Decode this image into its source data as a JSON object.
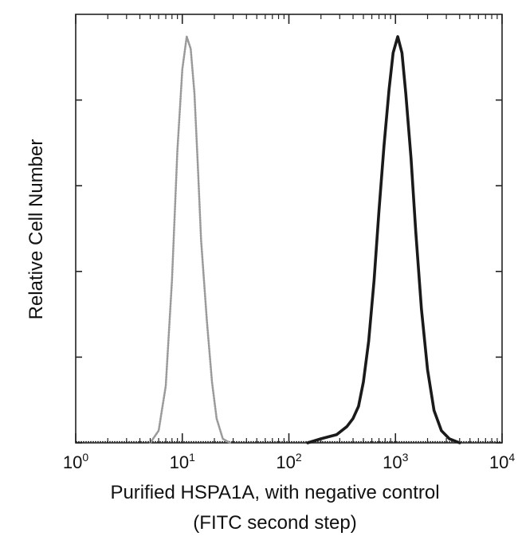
{
  "chart_data": {
    "type": "line",
    "title": "",
    "xlabel_line1": "Purified HSPA1A, with negative control",
    "xlabel_line2": "(FITC second step)",
    "ylabel": "Relative Cell Number",
    "x_scale": "log",
    "xlim": [
      1,
      10000
    ],
    "ylim": [
      0,
      100
    ],
    "grid": false,
    "legend": "none",
    "x_ticks": [
      {
        "base": "10",
        "exp": "0",
        "value": 1
      },
      {
        "base": "10",
        "exp": "1",
        "value": 10
      },
      {
        "base": "10",
        "exp": "2",
        "value": 100
      },
      {
        "base": "10",
        "exp": "3",
        "value": 1000
      },
      {
        "base": "10",
        "exp": "4",
        "value": 10000
      }
    ],
    "series": [
      {
        "color": "#9a9a9a",
        "style": "dotted",
        "points": [
          [
            5,
            0
          ],
          [
            6,
            3
          ],
          [
            7,
            14
          ],
          [
            8,
            40
          ],
          [
            9,
            72
          ],
          [
            10,
            92
          ],
          [
            11,
            100
          ],
          [
            12,
            97
          ],
          [
            13,
            86
          ],
          [
            14,
            68
          ],
          [
            15,
            50
          ],
          [
            17,
            30
          ],
          [
            19,
            15
          ],
          [
            21,
            6
          ],
          [
            24,
            1
          ],
          [
            28,
            0
          ]
        ]
      },
      {
        "color": "#1a1a1a",
        "style": "solid",
        "points": [
          [
            150,
            0
          ],
          [
            200,
            1
          ],
          [
            280,
            2
          ],
          [
            350,
            4
          ],
          [
            400,
            6
          ],
          [
            450,
            9
          ],
          [
            500,
            15
          ],
          [
            560,
            25
          ],
          [
            630,
            40
          ],
          [
            700,
            57
          ],
          [
            780,
            73
          ],
          [
            870,
            87
          ],
          [
            950,
            96
          ],
          [
            1050,
            100
          ],
          [
            1150,
            96
          ],
          [
            1250,
            86
          ],
          [
            1400,
            70
          ],
          [
            1550,
            52
          ],
          [
            1750,
            33
          ],
          [
            2000,
            18
          ],
          [
            2300,
            8
          ],
          [
            2700,
            3
          ],
          [
            3200,
            1
          ],
          [
            4000,
            0
          ]
        ]
      }
    ]
  }
}
